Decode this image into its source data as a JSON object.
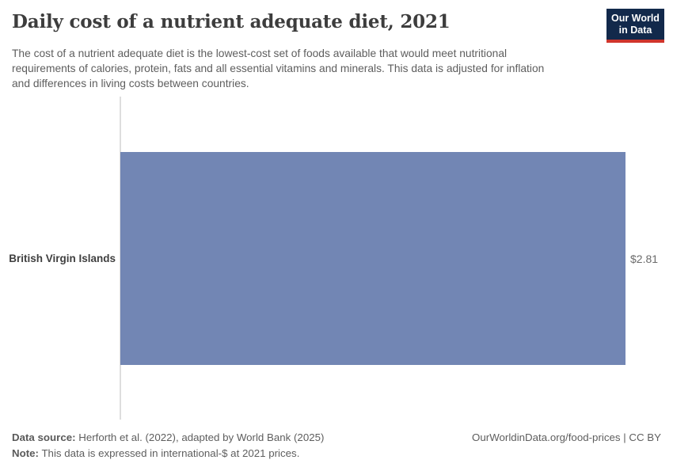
{
  "header": {
    "title": "Daily cost of a nutrient adequate diet, 2021",
    "subtitle_lines": [
      "The cost of a nutrient adequate diet is the lowest-cost set of foods available that would meet nutritional",
      "requirements of calories, protein, fats and all essential vitamins and minerals. This data is adjusted for inflation",
      "and differences in living costs between countries."
    ],
    "logo": {
      "line1": "Our World",
      "line2": "in Data"
    }
  },
  "chart_data": {
    "type": "bar",
    "orientation": "horizontal",
    "title": "Daily cost of a nutrient adequate diet, 2021",
    "categories": [
      "British Virgin Islands"
    ],
    "values": [
      2.81
    ],
    "value_labels": [
      "$2.81"
    ],
    "xlabel": "",
    "ylabel": "",
    "xlim": [
      0,
      2.81
    ],
    "grid": false,
    "legend": false,
    "bar_color": "#7286b4",
    "axis_line_color": "#dedede"
  },
  "footer": {
    "data_source_label": "Data source:",
    "data_source_text": " Herforth et al. (2022), adapted by World Bank (2025)",
    "note_label": "Note:",
    "note_text": " This data is expressed in international-$ at 2021 prices.",
    "right_text": "OurWorldinData.org/food-prices | CC BY"
  },
  "colors": {
    "title": "#3d3d3d",
    "body_text": "#5e5e5e",
    "bar": "#7286b4",
    "logo_navy": "#12294b",
    "logo_red": "#d0352c"
  }
}
